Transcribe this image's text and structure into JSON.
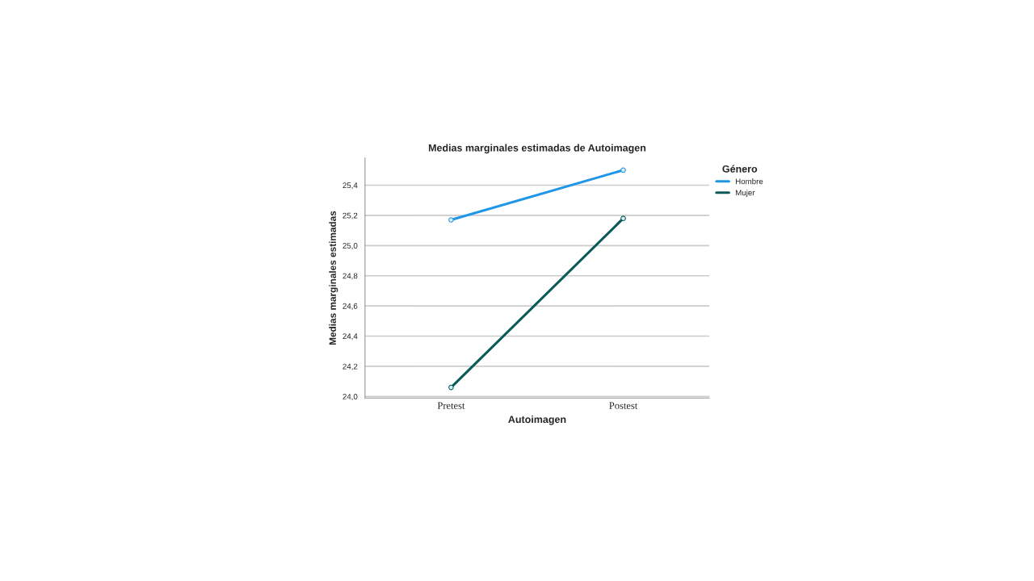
{
  "chart_data": {
    "type": "line",
    "title": "Medias marginales estimadas de Autoimagen",
    "xlabel": "Autoimagen",
    "ylabel": "Medias marginales estimadas",
    "legend_title": "Género",
    "categories": [
      "Pretest",
      "Postest"
    ],
    "series": [
      {
        "name": "Hombre",
        "color": "#1f96e8",
        "values": [
          25.17,
          25.5
        ]
      },
      {
        "name": "Mujer",
        "color": "#0b5a5a",
        "values": [
          24.06,
          25.18
        ]
      }
    ],
    "ylim": [
      23.99,
      25.58
    ],
    "yticks": [
      {
        "value": 24.0,
        "label": "24,0"
      },
      {
        "value": 24.2,
        "label": "24,2"
      },
      {
        "value": 24.4,
        "label": "24,4"
      },
      {
        "value": 24.6,
        "label": "24,6"
      },
      {
        "value": 24.8,
        "label": "24,8"
      },
      {
        "value": 25.0,
        "label": "25,0"
      },
      {
        "value": 25.2,
        "label": "25,2"
      },
      {
        "value": 25.4,
        "label": "25,4"
      }
    ],
    "grid": "y",
    "legend": "top right",
    "marker": "circle",
    "line_style": "solid"
  }
}
